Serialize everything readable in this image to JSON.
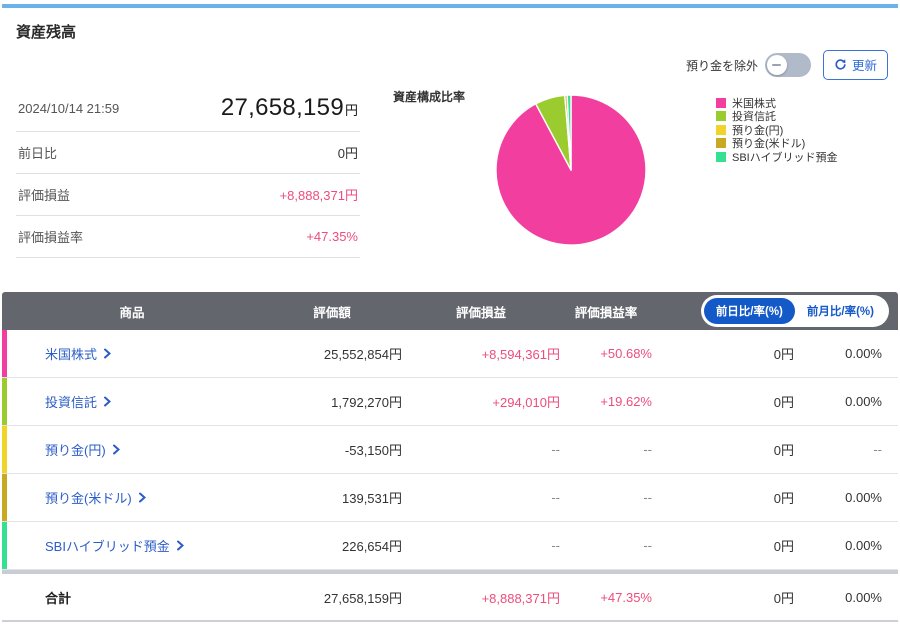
{
  "page": {
    "title": "資産残高"
  },
  "controls": {
    "toggle_label": "預り金を除外",
    "toggle_state": "off",
    "refresh_label": "更新"
  },
  "summary": {
    "timestamp": "2024/10/14 21:59",
    "total_value": "27,658,159",
    "total_unit": "円",
    "rows": [
      {
        "label": "前日比",
        "value": "0円"
      },
      {
        "label": "評価損益",
        "value": "+8,888,371円"
      },
      {
        "label": "評価損益率",
        "value": "+47.35%"
      }
    ]
  },
  "chart_data": {
    "type": "pie",
    "title": "資産構成比率",
    "legend_position": "right",
    "start_angle": "top",
    "direction": "clockwise",
    "legend": [
      {
        "label": "米国株式",
        "color": "#f23f9f"
      },
      {
        "label": "投資信託",
        "color": "#9bcc2f"
      },
      {
        "label": "預り金(円)",
        "color": "#f2d329"
      },
      {
        "label": "預り金(米ドル)",
        "color": "#c8a923"
      },
      {
        "label": "SBIハイブリッド預金",
        "color": "#35e093"
      }
    ],
    "slices": [
      {
        "label": "米国株式",
        "value": 25552854,
        "color": "#f23f9f"
      },
      {
        "label": "投資信託",
        "value": 1792270,
        "color": "#9bcc2f"
      },
      {
        "label": "預り金(米ドル)",
        "value": 139531,
        "color": "#c8a923"
      },
      {
        "label": "SBIハイブリッド預金",
        "value": 226654,
        "color": "#35e093"
      }
    ],
    "excluded_negative": {
      "label": "預り金(円)",
      "value": -53150
    }
  },
  "table": {
    "columns": [
      "商品",
      "評価額",
      "評価損益",
      "評価損益率"
    ],
    "toggle_buttons": [
      {
        "label": "前日比/率(%)",
        "active": true
      },
      {
        "label": "前月比/率(%)",
        "active": false
      }
    ],
    "rows": [
      {
        "name": "米国株式",
        "color": "#f23f9f",
        "value": "25,552,854円",
        "pl": "+8,594,361円",
        "pl_rate": "+50.68%",
        "day_change": "0円",
        "day_rate": "0.00%"
      },
      {
        "name": "投資信託",
        "color": "#9bcc2f",
        "value": "1,792,270円",
        "pl": "+294,010円",
        "pl_rate": "+19.62%",
        "day_change": "0円",
        "day_rate": "0.00%"
      },
      {
        "name": "預り金(円)",
        "color": "#f2d329",
        "value": "-53,150円",
        "pl": "--",
        "pl_rate": "--",
        "day_change": "0円",
        "day_rate": "--"
      },
      {
        "name": "預り金(米ドル)",
        "color": "#c8a923",
        "value": "139,531円",
        "pl": "--",
        "pl_rate": "--",
        "day_change": "0円",
        "day_rate": "0.00%"
      },
      {
        "name": "SBIハイブリッド預金",
        "color": "#35e093",
        "value": "226,654円",
        "pl": "--",
        "pl_rate": "--",
        "day_change": "0円",
        "day_rate": "0.00%"
      }
    ],
    "total": {
      "name": "合計",
      "value": "27,658,159円",
      "pl": "+8,888,371円",
      "pl_rate": "+47.35%",
      "day_change": "0円",
      "day_rate": "0.00%"
    }
  },
  "colors": {
    "accent_pink": "#ed4d7d",
    "link_blue": "#2b5dc8",
    "header_gray": "#63666d",
    "pill_blue": "#1459c8",
    "top_line_blue": "#6ab2e8"
  },
  "icons": {
    "refresh": "circular-arrow",
    "chevron_right": "›",
    "toggle_off": "—"
  }
}
